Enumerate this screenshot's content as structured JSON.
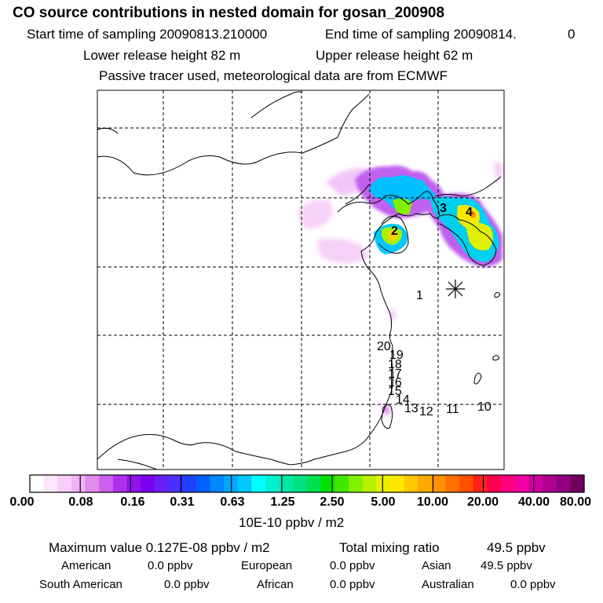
{
  "header": {
    "title": "CO  source contributions in nested domain for gosan_200908",
    "start_label": "Start time of sampling 20090813.210000",
    "end_label": "End time of sampling 20090814.",
    "end_value": "0",
    "lower_release": "Lower release height   82 m",
    "upper_release": "Upper release height   62 m",
    "tracer_info": "Passive tracer used, meteorological data are from ECMWF"
  },
  "map": {
    "receptor_label": "1",
    "region_labels": [
      "2",
      "3",
      "4"
    ],
    "trajectory_labels": [
      "20",
      "19",
      "18",
      "17",
      "16",
      "15",
      "14",
      "13",
      "12",
      "11",
      "10"
    ]
  },
  "colorbar": {
    "ticks": [
      "0.00",
      "0.08",
      "0.16",
      "0.31",
      "0.63",
      "1.25",
      "2.50",
      "5.00",
      "10.00",
      "20.00",
      "40.00",
      "80.00"
    ],
    "unit": "10E-10 ppbv / m2",
    "colors": [
      "#ffffff",
      "#fde6fd",
      "#f9ccfa",
      "#f4b2f6",
      "#e08bf0",
      "#cc5fee",
      "#b030ee",
      "#9010ee",
      "#7a00f0",
      "#6a20f5",
      "#4a30ff",
      "#2040ff",
      "#0060ff",
      "#0088ff",
      "#00a8ff",
      "#00c8ff",
      "#00ffff",
      "#00f0d0",
      "#00e8a8",
      "#00e080",
      "#00e050",
      "#00e000",
      "#40e800",
      "#80f000",
      "#b8f000",
      "#e8f000",
      "#ffe800",
      "#ffc800",
      "#ffa800",
      "#ff9000",
      "#ff7000",
      "#ff5000",
      "#ff2020",
      "#ff0050",
      "#ff0080",
      "#f000a0",
      "#d000a0",
      "#b00090",
      "#900080",
      "#700060"
    ]
  },
  "summary": {
    "max_label": "Maximum value  0.127E-08 ppbv / m2",
    "total_label": "Total mixing ratio",
    "total_value": "49.5 ppbv",
    "regions": [
      {
        "name": "American",
        "value": "0.0 ppbv"
      },
      {
        "name": "European",
        "value": "0.0 ppbv"
      },
      {
        "name": "Asian",
        "value": "49.5 ppbv"
      },
      {
        "name": "South American",
        "value": "0.0 ppbv"
      },
      {
        "name": "African",
        "value": "0.0 ppbv"
      },
      {
        "name": "Australian",
        "value": "0.0 ppbv"
      }
    ]
  }
}
